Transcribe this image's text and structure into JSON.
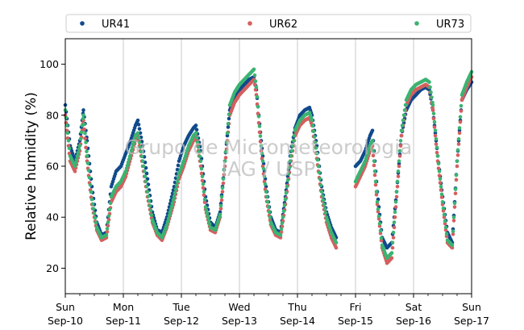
{
  "watermark": {
    "line1": "Grupo de Micrometeorologia",
    "line2": "IAG / USP"
  },
  "chart_data": {
    "type": "scatter",
    "title": "",
    "xlabel": "",
    "ylabel": "Relative humidity (%)",
    "ylim": [
      10,
      110
    ],
    "yticks": [
      20,
      40,
      60,
      80,
      100
    ],
    "xlim": [
      "2017-09-10 00:00",
      "2017-09-17 00:00"
    ],
    "xticks": [
      {
        "date": "2017-09-10",
        "day": "Sun",
        "date_label": "Sep-10"
      },
      {
        "date": "2017-09-11",
        "day": "Mon",
        "date_label": "Sep-11"
      },
      {
        "date": "2017-09-12",
        "day": "Tue",
        "date_label": "Sep-12"
      },
      {
        "date": "2017-09-13",
        "day": "Wed",
        "date_label": "Sep-13"
      },
      {
        "date": "2017-09-14",
        "day": "Thu",
        "date_label": "Sep-14"
      },
      {
        "date": "2017-09-15",
        "day": "Fri",
        "date_label": "Sep-15"
      },
      {
        "date": "2017-09-16",
        "day": "Sat",
        "date_label": "Sep-16"
      },
      {
        "date": "2017-09-17",
        "day": "Sun",
        "date_label": "Sep-17"
      }
    ],
    "grid": "vertical at day ticks",
    "legend_position": "top, above plot",
    "series": [
      {
        "name": "UR41",
        "color": "#114a8b",
        "values": [
          [
            "2017-09-10 00:00",
            84
          ],
          [
            "2017-09-10 02:00",
            68
          ],
          [
            "2017-09-10 04:00",
            62
          ],
          [
            "2017-09-10 06:00",
            70
          ],
          [
            "2017-09-10 07:30",
            82
          ],
          [
            "2017-09-10 09:00",
            70
          ],
          [
            "2017-09-10 11:00",
            52
          ],
          [
            "2017-09-10 13:00",
            38
          ],
          [
            "2017-09-10 15:00",
            33
          ],
          [
            "2017-09-10 17:00",
            34
          ],
          [
            "2017-09-10 19:00",
            52
          ],
          [
            "2017-09-10 21:00",
            58
          ],
          [
            "2017-09-10 23:00",
            60
          ],
          [
            "2017-09-11 01:00",
            65
          ],
          [
            "2017-09-11 03:00",
            70
          ],
          [
            "2017-09-11 05:00",
            76
          ],
          [
            "2017-09-11 06:00",
            78
          ],
          [
            "2017-09-11 08:00",
            68
          ],
          [
            "2017-09-11 10:00",
            55
          ],
          [
            "2017-09-11 12:00",
            42
          ],
          [
            "2017-09-11 14:00",
            35
          ],
          [
            "2017-09-11 16:00",
            34
          ],
          [
            "2017-09-11 18:00",
            40
          ],
          [
            "2017-09-11 21:00",
            52
          ],
          [
            "2017-09-11 23:00",
            62
          ],
          [
            "2017-09-12 01:00",
            68
          ],
          [
            "2017-09-12 03:00",
            72
          ],
          [
            "2017-09-12 05:00",
            75
          ],
          [
            "2017-09-12 06:00",
            76
          ],
          [
            "2017-09-12 08:00",
            66
          ],
          [
            "2017-09-12 10:00",
            48
          ],
          [
            "2017-09-12 12:00",
            38
          ],
          [
            "2017-09-12 14:00",
            36
          ],
          [
            "2017-09-12 16:00",
            42
          ],
          [
            "2017-09-12 18:00",
            62
          ],
          [
            "2017-09-12 20:00",
            82
          ],
          [
            "2017-09-12 22:00",
            87
          ],
          [
            "2017-09-13 00:00",
            90
          ],
          [
            "2017-09-13 02:00",
            92
          ],
          [
            "2017-09-13 04:00",
            94
          ],
          [
            "2017-09-13 06:00",
            95
          ],
          [
            "2017-09-13 07:00",
            90
          ],
          [
            "2017-09-13 09:00",
            70
          ],
          [
            "2017-09-13 11:00",
            52
          ],
          [
            "2017-09-13 13:00",
            40
          ],
          [
            "2017-09-13 15:00",
            35
          ],
          [
            "2017-09-13 17:00",
            34
          ],
          [
            "2017-09-13 19:00",
            48
          ],
          [
            "2017-09-13 21:00",
            64
          ],
          [
            "2017-09-13 23:00",
            75
          ],
          [
            "2017-09-14 01:00",
            80
          ],
          [
            "2017-09-14 03:00",
            82
          ],
          [
            "2017-09-14 05:00",
            83
          ],
          [
            "2017-09-14 06:00",
            80
          ],
          [
            "2017-09-14 08:00",
            68
          ],
          [
            "2017-09-14 10:00",
            52
          ],
          [
            "2017-09-14 12:00",
            42
          ],
          [
            "2017-09-14 14:00",
            36
          ],
          [
            "2017-09-14 16:00",
            32
          ],
          [
            "2017-09-15 00:00",
            60
          ],
          [
            "2017-09-15 02:00",
            62
          ],
          [
            "2017-09-15 04:00",
            66
          ],
          [
            "2017-09-15 06:00",
            72
          ],
          [
            "2017-09-15 07:00",
            74
          ],
          [
            "2017-09-15 09:00",
            50
          ],
          [
            "2017-09-15 11:00",
            32
          ],
          [
            "2017-09-15 13:00",
            28
          ],
          [
            "2017-09-15 15:00",
            30
          ],
          [
            "2017-09-15 17:00",
            50
          ],
          [
            "2017-09-15 19:00",
            72
          ],
          [
            "2017-09-15 21:00",
            82
          ],
          [
            "2017-09-15 23:00",
            86
          ],
          [
            "2017-09-16 01:00",
            88
          ],
          [
            "2017-09-16 03:00",
            90
          ],
          [
            "2017-09-16 05:00",
            91
          ],
          [
            "2017-09-16 06:30",
            90
          ],
          [
            "2017-09-16 08:00",
            82
          ],
          [
            "2017-09-16 10:00",
            64
          ],
          [
            "2017-09-16 12:00",
            48
          ],
          [
            "2017-09-16 14:00",
            34
          ],
          [
            "2017-09-16 16:00",
            30
          ],
          [
            "2017-09-16 18:00",
            62
          ],
          [
            "2017-09-16 20:00",
            86
          ],
          [
            "2017-09-16 22:00",
            90
          ],
          [
            "2017-09-17 00:00",
            93
          ]
        ]
      },
      {
        "name": "UR62",
        "color": "#d45f5f",
        "values": [
          [
            "2017-09-10 00:00",
            80
          ],
          [
            "2017-09-10 02:00",
            62
          ],
          [
            "2017-09-10 04:00",
            58
          ],
          [
            "2017-09-10 06:00",
            66
          ],
          [
            "2017-09-10 07:30",
            78
          ],
          [
            "2017-09-10 09:00",
            62
          ],
          [
            "2017-09-10 11:00",
            45
          ],
          [
            "2017-09-10 13:00",
            35
          ],
          [
            "2017-09-10 15:00",
            31
          ],
          [
            "2017-09-10 17:00",
            32
          ],
          [
            "2017-09-10 19:00",
            46
          ],
          [
            "2017-09-10 21:00",
            50
          ],
          [
            "2017-09-10 23:00",
            52
          ],
          [
            "2017-09-11 01:00",
            56
          ],
          [
            "2017-09-11 03:00",
            63
          ],
          [
            "2017-09-11 05:00",
            70
          ],
          [
            "2017-09-11 06:00",
            72
          ],
          [
            "2017-09-11 08:00",
            60
          ],
          [
            "2017-09-11 10:00",
            48
          ],
          [
            "2017-09-11 12:00",
            38
          ],
          [
            "2017-09-11 14:00",
            33
          ],
          [
            "2017-09-11 16:00",
            31
          ],
          [
            "2017-09-11 18:00",
            36
          ],
          [
            "2017-09-11 21:00",
            46
          ],
          [
            "2017-09-11 23:00",
            55
          ],
          [
            "2017-09-12 01:00",
            60
          ],
          [
            "2017-09-12 03:00",
            66
          ],
          [
            "2017-09-12 05:00",
            70
          ],
          [
            "2017-09-12 06:00",
            72
          ],
          [
            "2017-09-12 08:00",
            60
          ],
          [
            "2017-09-12 10:00",
            43
          ],
          [
            "2017-09-12 12:00",
            35
          ],
          [
            "2017-09-12 14:00",
            34
          ],
          [
            "2017-09-12 16:00",
            40
          ],
          [
            "2017-09-12 18:00",
            60
          ],
          [
            "2017-09-12 20:00",
            80
          ],
          [
            "2017-09-12 22:00",
            85
          ],
          [
            "2017-09-13 00:00",
            88
          ],
          [
            "2017-09-13 02:00",
            90
          ],
          [
            "2017-09-13 04:00",
            92
          ],
          [
            "2017-09-13 06:00",
            94
          ],
          [
            "2017-09-13 07:00",
            88
          ],
          [
            "2017-09-13 09:00",
            66
          ],
          [
            "2017-09-13 11:00",
            48
          ],
          [
            "2017-09-13 13:00",
            37
          ],
          [
            "2017-09-13 15:00",
            33
          ],
          [
            "2017-09-13 17:00",
            32
          ],
          [
            "2017-09-13 19:00",
            45
          ],
          [
            "2017-09-13 21:00",
            60
          ],
          [
            "2017-09-13 23:00",
            72
          ],
          [
            "2017-09-14 01:00",
            76
          ],
          [
            "2017-09-14 03:00",
            78
          ],
          [
            "2017-09-14 05:00",
            79
          ],
          [
            "2017-09-14 06:00",
            76
          ],
          [
            "2017-09-14 08:00",
            63
          ],
          [
            "2017-09-14 10:00",
            48
          ],
          [
            "2017-09-14 12:00",
            38
          ],
          [
            "2017-09-14 14:00",
            32
          ],
          [
            "2017-09-14 16:00",
            28
          ],
          [
            "2017-09-15 00:00",
            52
          ],
          [
            "2017-09-15 02:00",
            56
          ],
          [
            "2017-09-15 04:00",
            60
          ],
          [
            "2017-09-15 06:00",
            66
          ],
          [
            "2017-09-15 07:00",
            68
          ],
          [
            "2017-09-15 09:00",
            45
          ],
          [
            "2017-09-15 11:00",
            28
          ],
          [
            "2017-09-15 13:00",
            22
          ],
          [
            "2017-09-15 15:00",
            24
          ],
          [
            "2017-09-15 17:00",
            48
          ],
          [
            "2017-09-15 19:00",
            72
          ],
          [
            "2017-09-15 21:00",
            84
          ],
          [
            "2017-09-15 23:00",
            88
          ],
          [
            "2017-09-16 01:00",
            90
          ],
          [
            "2017-09-16 03:00",
            91
          ],
          [
            "2017-09-16 05:00",
            92
          ],
          [
            "2017-09-16 06:30",
            91
          ],
          [
            "2017-09-16 08:00",
            82
          ],
          [
            "2017-09-16 10:00",
            62
          ],
          [
            "2017-09-16 12:00",
            45
          ],
          [
            "2017-09-16 14:00",
            30
          ],
          [
            "2017-09-16 16:00",
            28
          ],
          [
            "2017-09-16 18:00",
            60
          ],
          [
            "2017-09-16 20:00",
            86
          ],
          [
            "2017-09-16 22:00",
            91
          ],
          [
            "2017-09-17 00:00",
            95
          ]
        ]
      },
      {
        "name": "UR73",
        "color": "#3cb371",
        "values": [
          [
            "2017-09-10 00:00",
            82
          ],
          [
            "2017-09-10 02:00",
            64
          ],
          [
            "2017-09-10 04:00",
            60
          ],
          [
            "2017-09-10 06:00",
            68
          ],
          [
            "2017-09-10 07:30",
            80
          ],
          [
            "2017-09-10 09:00",
            64
          ],
          [
            "2017-09-10 11:00",
            47
          ],
          [
            "2017-09-10 13:00",
            36
          ],
          [
            "2017-09-10 15:00",
            32
          ],
          [
            "2017-09-10 17:00",
            33
          ],
          [
            "2017-09-10 19:00",
            48
          ],
          [
            "2017-09-10 21:00",
            52
          ],
          [
            "2017-09-10 23:00",
            54
          ],
          [
            "2017-09-11 01:00",
            58
          ],
          [
            "2017-09-11 03:00",
            65
          ],
          [
            "2017-09-11 05:00",
            72
          ],
          [
            "2017-09-11 06:00",
            73
          ],
          [
            "2017-09-11 08:00",
            62
          ],
          [
            "2017-09-11 10:00",
            50
          ],
          [
            "2017-09-11 12:00",
            39
          ],
          [
            "2017-09-11 14:00",
            34
          ],
          [
            "2017-09-11 16:00",
            32
          ],
          [
            "2017-09-11 18:00",
            37
          ],
          [
            "2017-09-11 21:00",
            48
          ],
          [
            "2017-09-11 23:00",
            57
          ],
          [
            "2017-09-12 01:00",
            62
          ],
          [
            "2017-09-12 03:00",
            68
          ],
          [
            "2017-09-12 05:00",
            72
          ],
          [
            "2017-09-12 06:00",
            73
          ],
          [
            "2017-09-12 08:00",
            62
          ],
          [
            "2017-09-12 10:00",
            44
          ],
          [
            "2017-09-12 12:00",
            36
          ],
          [
            "2017-09-12 14:00",
            35
          ],
          [
            "2017-09-12 16:00",
            41
          ],
          [
            "2017-09-12 18:00",
            62
          ],
          [
            "2017-09-12 20:00",
            84
          ],
          [
            "2017-09-12 22:00",
            89
          ],
          [
            "2017-09-13 00:00",
            92
          ],
          [
            "2017-09-13 02:00",
            94
          ],
          [
            "2017-09-13 04:00",
            96
          ],
          [
            "2017-09-13 06:00",
            98
          ],
          [
            "2017-09-13 07:00",
            91
          ],
          [
            "2017-09-13 09:00",
            68
          ],
          [
            "2017-09-13 11:00",
            50
          ],
          [
            "2017-09-13 13:00",
            38
          ],
          [
            "2017-09-13 15:00",
            34
          ],
          [
            "2017-09-13 17:00",
            33
          ],
          [
            "2017-09-13 19:00",
            47
          ],
          [
            "2017-09-13 21:00",
            62
          ],
          [
            "2017-09-13 23:00",
            74
          ],
          [
            "2017-09-14 01:00",
            78
          ],
          [
            "2017-09-14 03:00",
            80
          ],
          [
            "2017-09-14 05:00",
            81
          ],
          [
            "2017-09-14 06:00",
            78
          ],
          [
            "2017-09-14 08:00",
            65
          ],
          [
            "2017-09-14 10:00",
            50
          ],
          [
            "2017-09-14 12:00",
            40
          ],
          [
            "2017-09-14 14:00",
            34
          ],
          [
            "2017-09-14 16:00",
            30
          ],
          [
            "2017-09-15 00:00",
            54
          ],
          [
            "2017-09-15 02:00",
            58
          ],
          [
            "2017-09-15 04:00",
            62
          ],
          [
            "2017-09-15 06:00",
            68
          ],
          [
            "2017-09-15 07:00",
            70
          ],
          [
            "2017-09-15 09:00",
            46
          ],
          [
            "2017-09-15 11:00",
            29
          ],
          [
            "2017-09-15 13:00",
            24
          ],
          [
            "2017-09-15 15:00",
            26
          ],
          [
            "2017-09-15 17:00",
            50
          ],
          [
            "2017-09-15 19:00",
            74
          ],
          [
            "2017-09-15 21:00",
            86
          ],
          [
            "2017-09-15 23:00",
            90
          ],
          [
            "2017-09-16 01:00",
            92
          ],
          [
            "2017-09-16 03:00",
            93
          ],
          [
            "2017-09-16 05:00",
            94
          ],
          [
            "2017-09-16 06:30",
            93
          ],
          [
            "2017-09-16 08:00",
            84
          ],
          [
            "2017-09-16 10:00",
            64
          ],
          [
            "2017-09-16 12:00",
            46
          ],
          [
            "2017-09-16 14:00",
            31
          ],
          [
            "2017-09-16 16:00",
            29
          ],
          [
            "2017-09-16 18:00",
            62
          ],
          [
            "2017-09-16 20:00",
            88
          ],
          [
            "2017-09-16 22:00",
            93
          ],
          [
            "2017-09-17 00:00",
            97
          ]
        ]
      }
    ]
  }
}
